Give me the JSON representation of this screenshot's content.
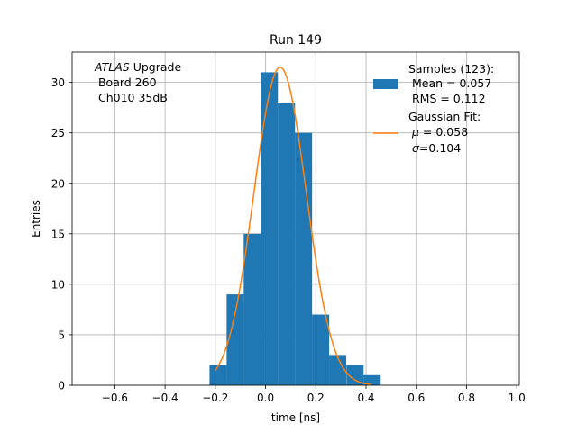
{
  "chart_data": {
    "type": "histogram",
    "title": "Run 149",
    "xlabel": "time [ns]",
    "ylabel": "Entries",
    "xlim": [
      -0.77,
      1.01
    ],
    "ylim": [
      0,
      33
    ],
    "grid": true,
    "xticks": [
      -0.6,
      -0.4,
      -0.2,
      0.0,
      0.2,
      0.4,
      0.6,
      0.8,
      1.0
    ],
    "xtick_labels": [
      "−0.6",
      "−0.4",
      "−0.2",
      "0.0",
      "0.2",
      "0.4",
      "0.6",
      "0.8",
      "1.0"
    ],
    "yticks": [
      0,
      5,
      10,
      15,
      20,
      25,
      30
    ],
    "ytick_labels": [
      "0",
      "5",
      "10",
      "15",
      "20",
      "25",
      "30"
    ],
    "bin_width": 0.0682,
    "bins": [
      {
        "left": -0.223,
        "count": 2
      },
      {
        "left": -0.155,
        "count": 9
      },
      {
        "left": -0.087,
        "count": 15
      },
      {
        "left": -0.019,
        "count": 31
      },
      {
        "left": 0.049,
        "count": 28
      },
      {
        "left": 0.117,
        "count": 25
      },
      {
        "left": 0.185,
        "count": 7
      },
      {
        "left": 0.253,
        "count": 3
      },
      {
        "left": 0.322,
        "count": 2
      },
      {
        "left": 0.39,
        "count": 1
      }
    ],
    "fit": {
      "mu": 0.058,
      "sigma": 0.104,
      "amplitude": 31.5,
      "x_range": [
        -0.2,
        0.42
      ]
    },
    "hist_color": "#1f77b4",
    "fit_color": "#ff7f0e",
    "legend": {
      "position": "upper-right",
      "samples_lines": [
        "Samples (123):",
        " Mean = 0.057",
        " RMS = 0.112"
      ],
      "fit_lines": [
        "Gaussian Fit:"
      ]
    },
    "annotation": {
      "atlas_italic": "ATLAS",
      "atlas_rest": " Upgrade",
      "line2": " Board 260",
      "line3": " Ch010 35dB"
    }
  }
}
